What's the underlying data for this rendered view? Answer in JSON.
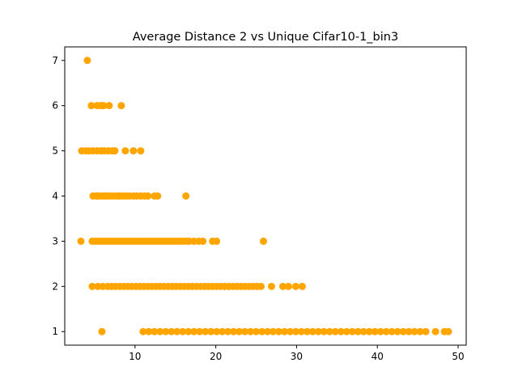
{
  "chart_data": {
    "type": "scatter",
    "title": "Average Distance 2 vs Unique Cifar10-1_bin3",
    "xlabel": "",
    "ylabel": "",
    "xlim": [
      1.3,
      51.0
    ],
    "ylim": [
      0.7,
      7.3
    ],
    "x_ticks": [
      10,
      20,
      30,
      40,
      50
    ],
    "y_ticks": [
      1,
      2,
      3,
      4,
      5,
      6,
      7
    ],
    "grid": false,
    "legend": "none",
    "marker_color": "#FFA500",
    "series": [
      {
        "groups": [
          {
            "y": 7,
            "x": [
              4.1
            ]
          },
          {
            "y": 6,
            "x": [
              4.6,
              5.3,
              5.8,
              6.1,
              6.8,
              8.3
            ]
          },
          {
            "y": 5,
            "x": [
              3.4,
              3.9,
              4.3,
              4.8,
              5.3,
              5.8,
              6.2,
              6.7,
              7.2,
              7.5,
              8.8,
              9.8,
              10.7
            ]
          },
          {
            "y": 4,
            "x": [
              4.8,
              5.2,
              5.5,
              5.9,
              6.3,
              6.6,
              7.0,
              7.4,
              7.8,
              8.1,
              8.5,
              8.9,
              9.3,
              9.8,
              10.2,
              10.7,
              11.2,
              11.6,
              12.4,
              12.8,
              16.3
            ]
          },
          {
            "y": 3,
            "x": [
              3.3,
              4.7,
              5.1,
              5.5,
              5.9,
              6.3,
              6.7,
              7.1,
              7.5,
              7.9,
              8.3,
              8.7,
              9.1,
              9.5,
              9.9,
              10.3,
              10.7,
              11.1,
              11.5,
              11.9,
              12.3,
              12.7,
              13.1,
              13.5,
              13.9,
              14.3,
              14.7,
              15.1,
              15.5,
              15.9,
              16.3,
              16.7,
              17.3,
              17.9,
              18.4,
              19.6,
              20.1,
              25.9
            ]
          },
          {
            "y": 2,
            "x": [
              4.7,
              5.4,
              6.0,
              6.6,
              7.1,
              7.6,
              8.1,
              8.6,
              9.1,
              9.6,
              10.1,
              10.6,
              11.1,
              11.6,
              12.1,
              12.6,
              13.1,
              13.6,
              14.1,
              14.6,
              15.1,
              15.6,
              16.1,
              16.6,
              17.1,
              17.6,
              18.1,
              18.6,
              19.1,
              19.6,
              20.1,
              20.6,
              21.1,
              21.6,
              22.1,
              22.6,
              23.1,
              23.6,
              24.1,
              24.6,
              25.1,
              25.6,
              26.9,
              28.3,
              29.0,
              29.9,
              30.7
            ]
          },
          {
            "y": 1,
            "x": [
              5.9,
              11.0,
              11.7,
              12.4,
              13.1,
              13.8,
              14.5,
              15.2,
              15.9,
              16.6,
              17.3,
              18.0,
              18.7,
              19.4,
              20.1,
              20.8,
              21.5,
              22.2,
              22.9,
              23.6,
              24.3,
              25.0,
              25.7,
              26.4,
              27.1,
              27.8,
              28.5,
              29.2,
              29.9,
              30.6,
              31.3,
              32.0,
              32.7,
              33.4,
              34.1,
              34.8,
              35.5,
              36.2,
              36.9,
              37.6,
              38.3,
              39.0,
              39.7,
              40.4,
              41.1,
              41.8,
              42.5,
              43.2,
              43.9,
              44.6,
              45.3,
              46.0,
              47.2,
              48.3,
              48.8
            ]
          }
        ]
      }
    ]
  }
}
